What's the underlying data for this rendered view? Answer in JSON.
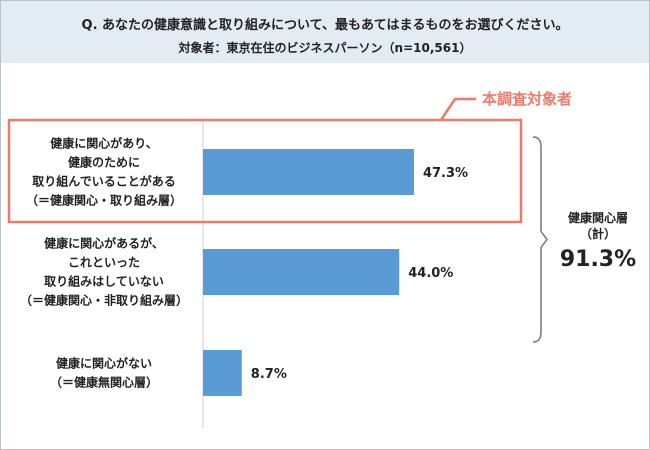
{
  "header": {
    "question": "Q. あなたの健康意識と取り組みについて、最もあてはまるものをお選びください。",
    "subtitle": "対象者：東京在住のビジネスパーソン（n=10,561）"
  },
  "chart_data": {
    "type": "bar",
    "orientation": "horizontal",
    "categories": [
      [
        "健康に関心があり、",
        "健康のために",
        "取り組んでいることがある",
        "（＝健康関心・取り組み層）"
      ],
      [
        "健康に関心があるが、",
        "これといった",
        "取り組みはしていない",
        "（＝健康関心・非取り組み層）"
      ],
      [
        "健康に関心がない",
        "（＝健康無関心層）"
      ]
    ],
    "values": [
      47.3,
      44.0,
      8.7
    ],
    "value_labels": [
      "47.3%",
      "44.0%",
      "8.7%"
    ],
    "xlim": [
      0,
      100
    ],
    "bar_color": "#5b9bd5",
    "highlight": {
      "label": "本調査対象者",
      "category_index": 0,
      "color": "#ee7b6a"
    },
    "bracket": {
      "label_lines": [
        "健康関心層",
        "（計）"
      ],
      "total": "91.3%",
      "category_indices": [
        0,
        1
      ]
    }
  }
}
